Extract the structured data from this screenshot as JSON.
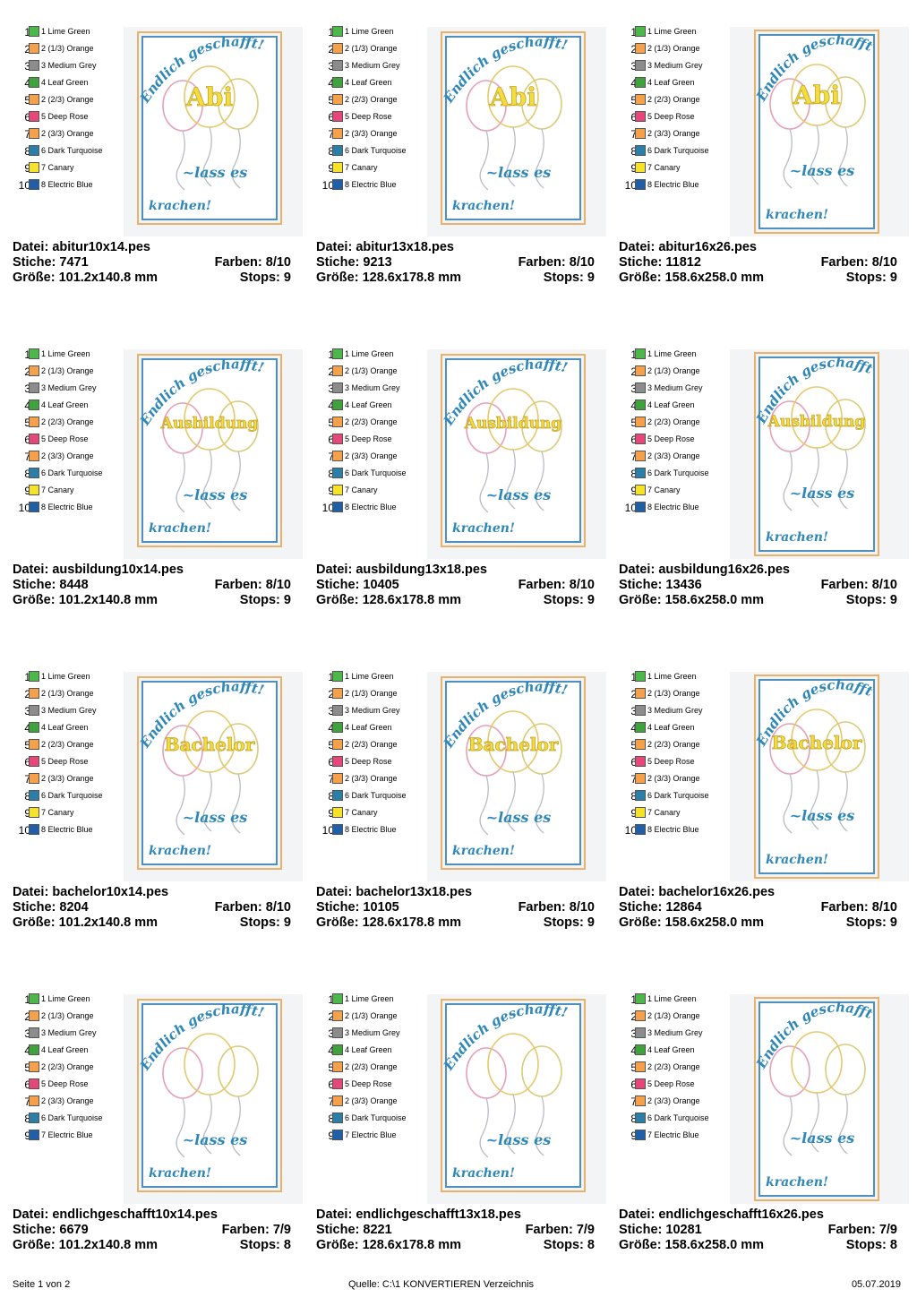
{
  "labels": {
    "file": "Datei:",
    "stitches": "Stiche:",
    "size": "Größe:",
    "colors": "Farben:",
    "stops": "Stops:"
  },
  "design_text": {
    "top": "Endlich geschafft!",
    "middle": "~lass es",
    "bottom": "krachen!"
  },
  "palettes": {
    "ten": [
      {
        "num": "1",
        "label": "1 Lime Green",
        "color": "#4cb84a"
      },
      {
        "num": "2",
        "label": "2 (1/3) Orange",
        "color": "#f4a14a"
      },
      {
        "num": "3",
        "label": "3 Medium Grey",
        "color": "#8c8c8c"
      },
      {
        "num": "4",
        "label": "4 Leaf Green",
        "color": "#3ea33b"
      },
      {
        "num": "5",
        "label": "2 (2/3) Orange",
        "color": "#f4a14a"
      },
      {
        "num": "6",
        "label": "5 Deep Rose",
        "color": "#e8457a"
      },
      {
        "num": "7",
        "label": "2 (3/3) Orange",
        "color": "#f4a14a"
      },
      {
        "num": "8",
        "label": "6 Dark Turquoise",
        "color": "#2a7fa8"
      },
      {
        "num": "9",
        "label": "7 Canary",
        "color": "#f7e22a"
      },
      {
        "num": "10",
        "label": "8 Electric Blue",
        "color": "#1f5fa8"
      }
    ],
    "nine": [
      {
        "num": "1",
        "label": "1 Lime Green",
        "color": "#4cb84a"
      },
      {
        "num": "2",
        "label": "2 (1/3) Orange",
        "color": "#f4a14a"
      },
      {
        "num": "3",
        "label": "3 Medium Grey",
        "color": "#8c8c8c"
      },
      {
        "num": "4",
        "label": "4 Leaf Green",
        "color": "#3ea33b"
      },
      {
        "num": "5",
        "label": "2 (2/3) Orange",
        "color": "#f4a14a"
      },
      {
        "num": "6",
        "label": "5 Deep Rose",
        "color": "#e8457a"
      },
      {
        "num": "7",
        "label": "2 (3/3) Orange",
        "color": "#f4a14a"
      },
      {
        "num": "8",
        "label": "6 Dark Turquoise",
        "color": "#2a7fa8"
      },
      {
        "num": "9",
        "label": "7 Electric Blue",
        "color": "#1f5fa8"
      }
    ]
  },
  "cards": [
    {
      "word": "Abi",
      "palette": "ten",
      "file": "abitur10x14.pes",
      "stitches": "7471",
      "colors": "8/10",
      "size": "101.2x140.8 mm",
      "stops": "9"
    },
    {
      "word": "Abi",
      "palette": "ten",
      "file": "abitur13x18.pes",
      "stitches": "9213",
      "colors": "8/10",
      "size": "128.6x178.8 mm",
      "stops": "9"
    },
    {
      "word": "Abi",
      "palette": "ten",
      "file": "abitur16x26.pes",
      "stitches": "11812",
      "colors": "8/10",
      "size": "158.6x258.0 mm",
      "stops": "9"
    },
    {
      "word": "Ausbildung",
      "palette": "ten",
      "file": "ausbildung10x14.pes",
      "stitches": "8448",
      "colors": "8/10",
      "size": "101.2x140.8 mm",
      "stops": "9"
    },
    {
      "word": "Ausbildung",
      "palette": "ten",
      "file": "ausbildung13x18.pes",
      "stitches": "10405",
      "colors": "8/10",
      "size": "128.6x178.8 mm",
      "stops": "9"
    },
    {
      "word": "Ausbildung",
      "palette": "ten",
      "file": "ausbildung16x26.pes",
      "stitches": "13436",
      "colors": "8/10",
      "size": "158.6x258.0 mm",
      "stops": "9"
    },
    {
      "word": "Bachelor",
      "palette": "ten",
      "file": "bachelor10x14.pes",
      "stitches": "8204",
      "colors": "8/10",
      "size": "101.2x140.8 mm",
      "stops": "9"
    },
    {
      "word": "Bachelor",
      "palette": "ten",
      "file": "bachelor13x18.pes",
      "stitches": "10105",
      "colors": "8/10",
      "size": "128.6x178.8 mm",
      "stops": "9"
    },
    {
      "word": "Bachelor",
      "palette": "ten",
      "file": "bachelor16x26.pes",
      "stitches": "12864",
      "colors": "8/10",
      "size": "158.6x258.0 mm",
      "stops": "9"
    },
    {
      "word": "",
      "palette": "nine",
      "file": "endlichgeschafft10x14.pes",
      "stitches": "6679",
      "colors": "7/9",
      "size": "101.2x140.8 mm",
      "stops": "8"
    },
    {
      "word": "",
      "palette": "nine",
      "file": "endlichgeschafft13x18.pes",
      "stitches": "8221",
      "colors": "7/9",
      "size": "128.6x178.8 mm",
      "stops": "8"
    },
    {
      "word": "",
      "palette": "nine",
      "file": "endlichgeschafft16x26.pes",
      "stitches": "10281",
      "colors": "7/9",
      "size": "158.6x258.0 mm",
      "stops": "8"
    }
  ],
  "footer": {
    "page": "Seite 1 von 2",
    "source": "Quelle: C:\\1 KONVERTIEREN Verzeichnis",
    "date": "05.07.2019"
  }
}
